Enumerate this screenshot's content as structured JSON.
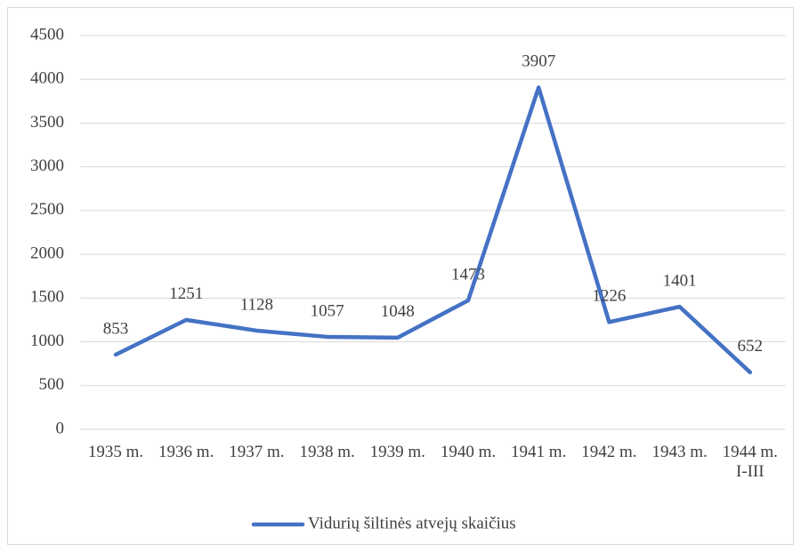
{
  "chart_data": {
    "type": "line",
    "categories": [
      "1935 m.",
      "1936 m.",
      "1937 m.",
      "1938 m.",
      "1939 m.",
      "1940 m.",
      "1941 m.",
      "1942 m.",
      "1943 m.",
      "1944 m. I-III"
    ],
    "series": [
      {
        "name": "Vidurių šiltinės atvejų skaičius",
        "color": "#4472c4",
        "values": [
          853,
          1251,
          1128,
          1057,
          1048,
          1473,
          3907,
          1226,
          1401,
          652
        ]
      }
    ],
    "ylim": [
      0,
      4500
    ],
    "yticks": [
      0,
      500,
      1000,
      1500,
      2000,
      2500,
      3000,
      3500,
      4000,
      4500
    ],
    "grid": true,
    "legend": "bottom"
  }
}
